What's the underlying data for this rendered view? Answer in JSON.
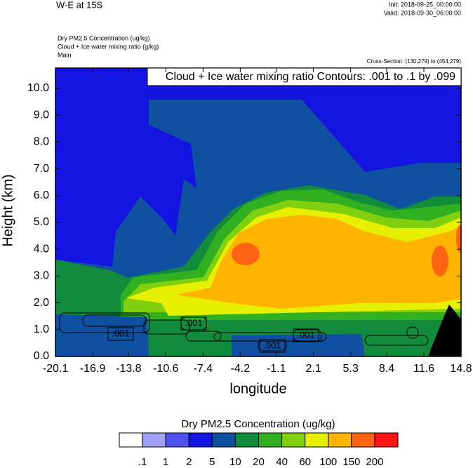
{
  "chart_data": {
    "type": "contour",
    "title": "W-E at 15S",
    "init": "Init: 2018-09-25_00:00:00",
    "valid": "Valid: 2018-09-30_06:00:00",
    "field_labels": [
      "Dry PM2.5 Concentration   (ug/kg)",
      "Cloud + Ice water mixing ratio   (g/kg)",
      "Main"
    ],
    "cross_section": "Cross-Section: (130,279) to (454,279)",
    "contour_info": "Cloud + Ice water mixing ratio Contours: .001 to .1 by .099",
    "contour_labels": [
      ".001",
      ".001",
      ".001",
      ".001"
    ],
    "ylabel": "Height (km)",
    "xlabel": "longitude",
    "xlim": [
      -20.1,
      14.8
    ],
    "xticks": [
      -20.1,
      -16.9,
      -13.8,
      -10.6,
      -7.4,
      -4.2,
      -1.1,
      2.1,
      5.3,
      8.4,
      11.6,
      14.8
    ],
    "ylim": [
      0,
      10.76
    ],
    "yticks": [
      {
        "value": 0,
        "label": "0.0"
      },
      {
        "value": 1,
        "label": "1.0"
      },
      {
        "value": 2,
        "label": "2.0"
      },
      {
        "value": 3,
        "label": "3.0"
      },
      {
        "value": 4,
        "label": "4.0"
      },
      {
        "value": 5,
        "label": "5.0"
      },
      {
        "value": 6,
        "label": "6.0"
      },
      {
        "value": 7,
        "label": "7.0"
      },
      {
        "value": 8,
        "label": "8.0"
      },
      {
        "value": 9,
        "label": "9.0"
      },
      {
        "value": 10,
        "label": "10.0"
      }
    ],
    "colorbar": {
      "title": "Dry PM2.5 Concentration  (ug/kg)",
      "levels": [
        {
          "value": 0.1,
          "label": ".1"
        },
        1,
        2,
        5,
        10,
        20,
        40,
        60,
        100,
        150,
        200
      ],
      "colors": [
        "#ffffff",
        "#a0a0f5",
        "#5050f0",
        "#1414e0",
        "#1050a0",
        "#128c3c",
        "#30b020",
        "#80d010",
        "#e6f000",
        "#ffb400",
        "#ff6414",
        "#ff1414"
      ]
    }
  }
}
